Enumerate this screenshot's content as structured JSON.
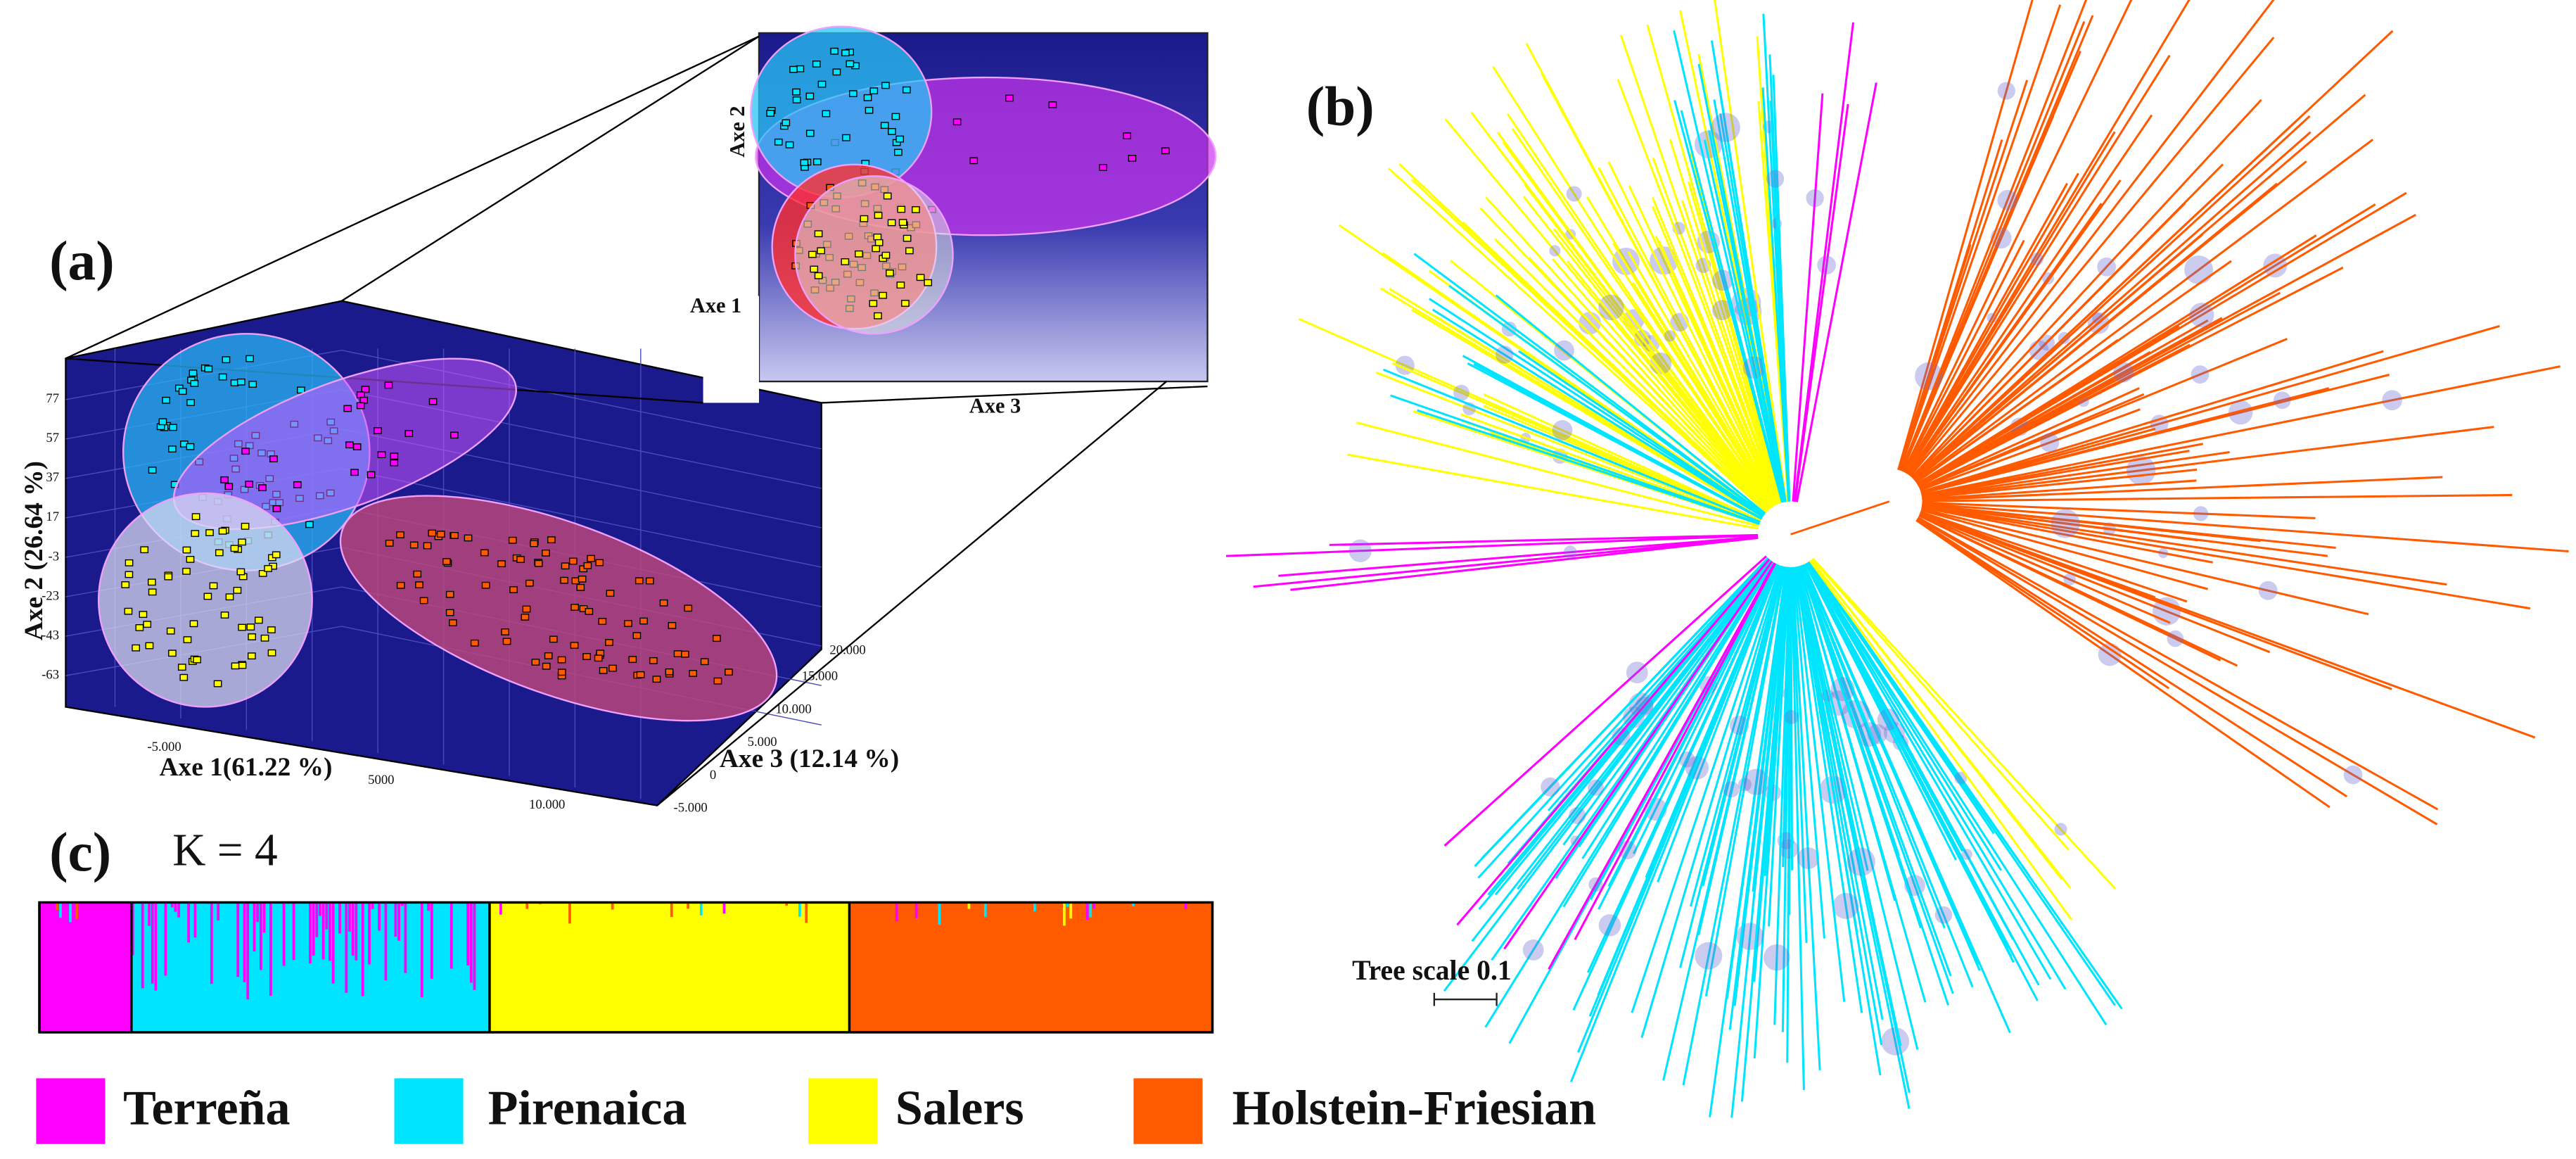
{
  "panels": {
    "a": {
      "label": "(a)",
      "y_axis_label": "Axe 2 (26.64 %)",
      "x_axis_label": "Axe 1(61.22 %)",
      "z_axis_label": "Axe 3 (12.14 %)",
      "y_ticks": [
        "77",
        "57",
        "37",
        "17",
        "-3",
        "-23",
        "-43",
        "-63"
      ],
      "x_ticks": [
        "-5.000",
        "5000",
        "10.000"
      ],
      "z_ticks": [
        "20.000",
        "15.000",
        "10.000",
        "5.000",
        "0",
        "-5.000"
      ],
      "inset": {
        "y_axis_label": "Axe 2",
        "x_axis_label": "Axe 1",
        "z_axis_label": "Axe 3"
      }
    },
    "b": {
      "label": "(b)",
      "scale_label": "Tree scale 0.1"
    },
    "c": {
      "label": "(c)",
      "k_label": "K = 4"
    }
  },
  "legend": [
    {
      "name": "Terreña",
      "color": "#ff00ff"
    },
    {
      "name": "Pirenaica",
      "color": "#00e5ff"
    },
    {
      "name": "Salers",
      "color": "#ffff00"
    },
    {
      "name": "Holstein-Friesian",
      "color": "#ff5a00"
    }
  ]
}
